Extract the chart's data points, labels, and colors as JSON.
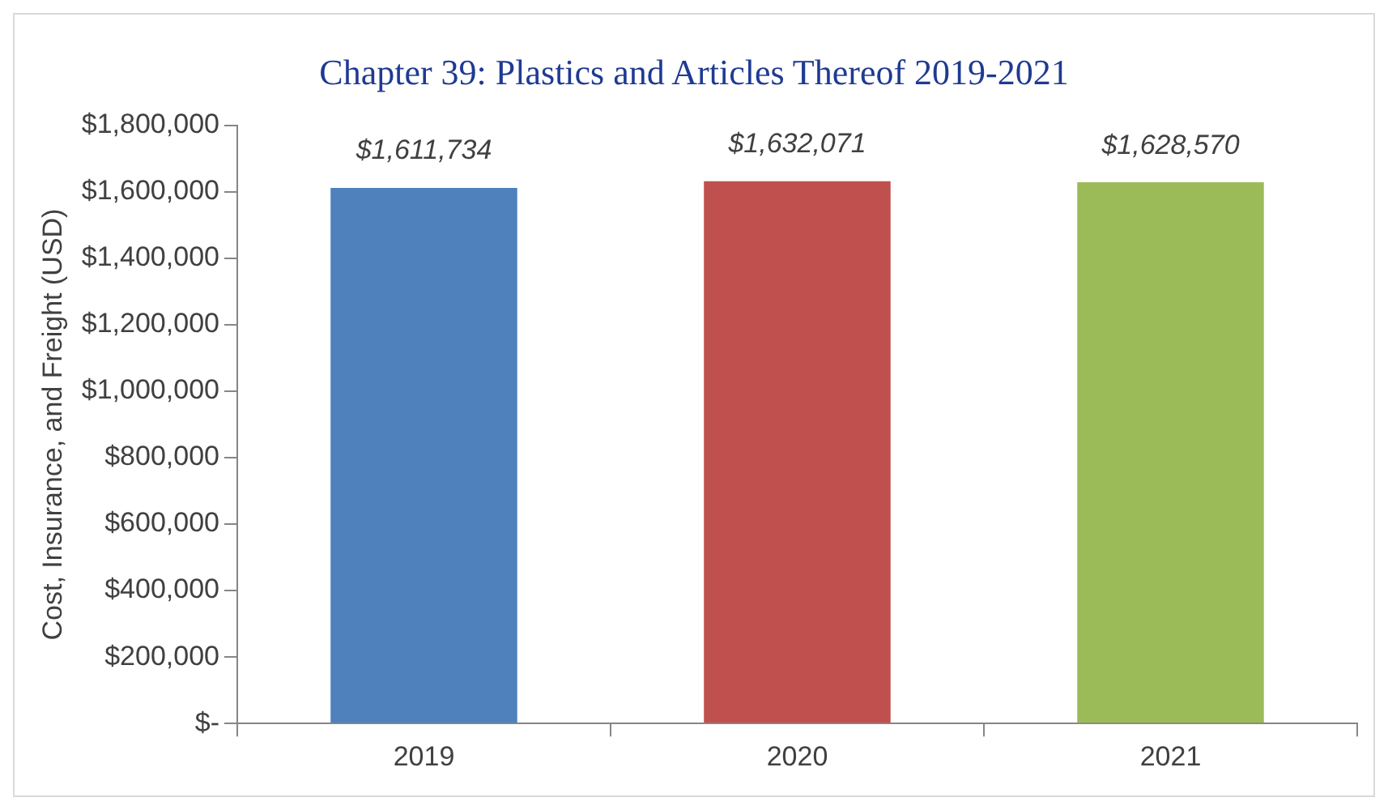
{
  "chart_data": {
    "type": "bar",
    "title": "Chapter 39: Plastics and Articles Thereof 2019-2021",
    "ylabel": "Cost, Insurance, and Freight (USD)",
    "categories": [
      "2019",
      "2020",
      "2021"
    ],
    "values": [
      1611734,
      1632071,
      1628570
    ],
    "colors": [
      "#4f81bd",
      "#c0504d",
      "#9bbb59"
    ],
    "value_labels": [
      "$1,611,734",
      "$1,632,071",
      "$1,628,570"
    ],
    "ylim": [
      0,
      1800000
    ],
    "yticks": [
      {
        "value": 0,
        "label": "$-"
      },
      {
        "value": 200000,
        "label": "$200,000"
      },
      {
        "value": 400000,
        "label": "$400,000"
      },
      {
        "value": 600000,
        "label": "$600,000"
      },
      {
        "value": 800000,
        "label": "$800,000"
      },
      {
        "value": 1000000,
        "label": "$1,000,000"
      },
      {
        "value": 1200000,
        "label": "$1,200,000"
      },
      {
        "value": 1400000,
        "label": "$1,400,000"
      },
      {
        "value": 1600000,
        "label": "$1,600,000"
      },
      {
        "value": 1800000,
        "label": "$1,800,000"
      }
    ],
    "grid": false,
    "legend": false
  }
}
